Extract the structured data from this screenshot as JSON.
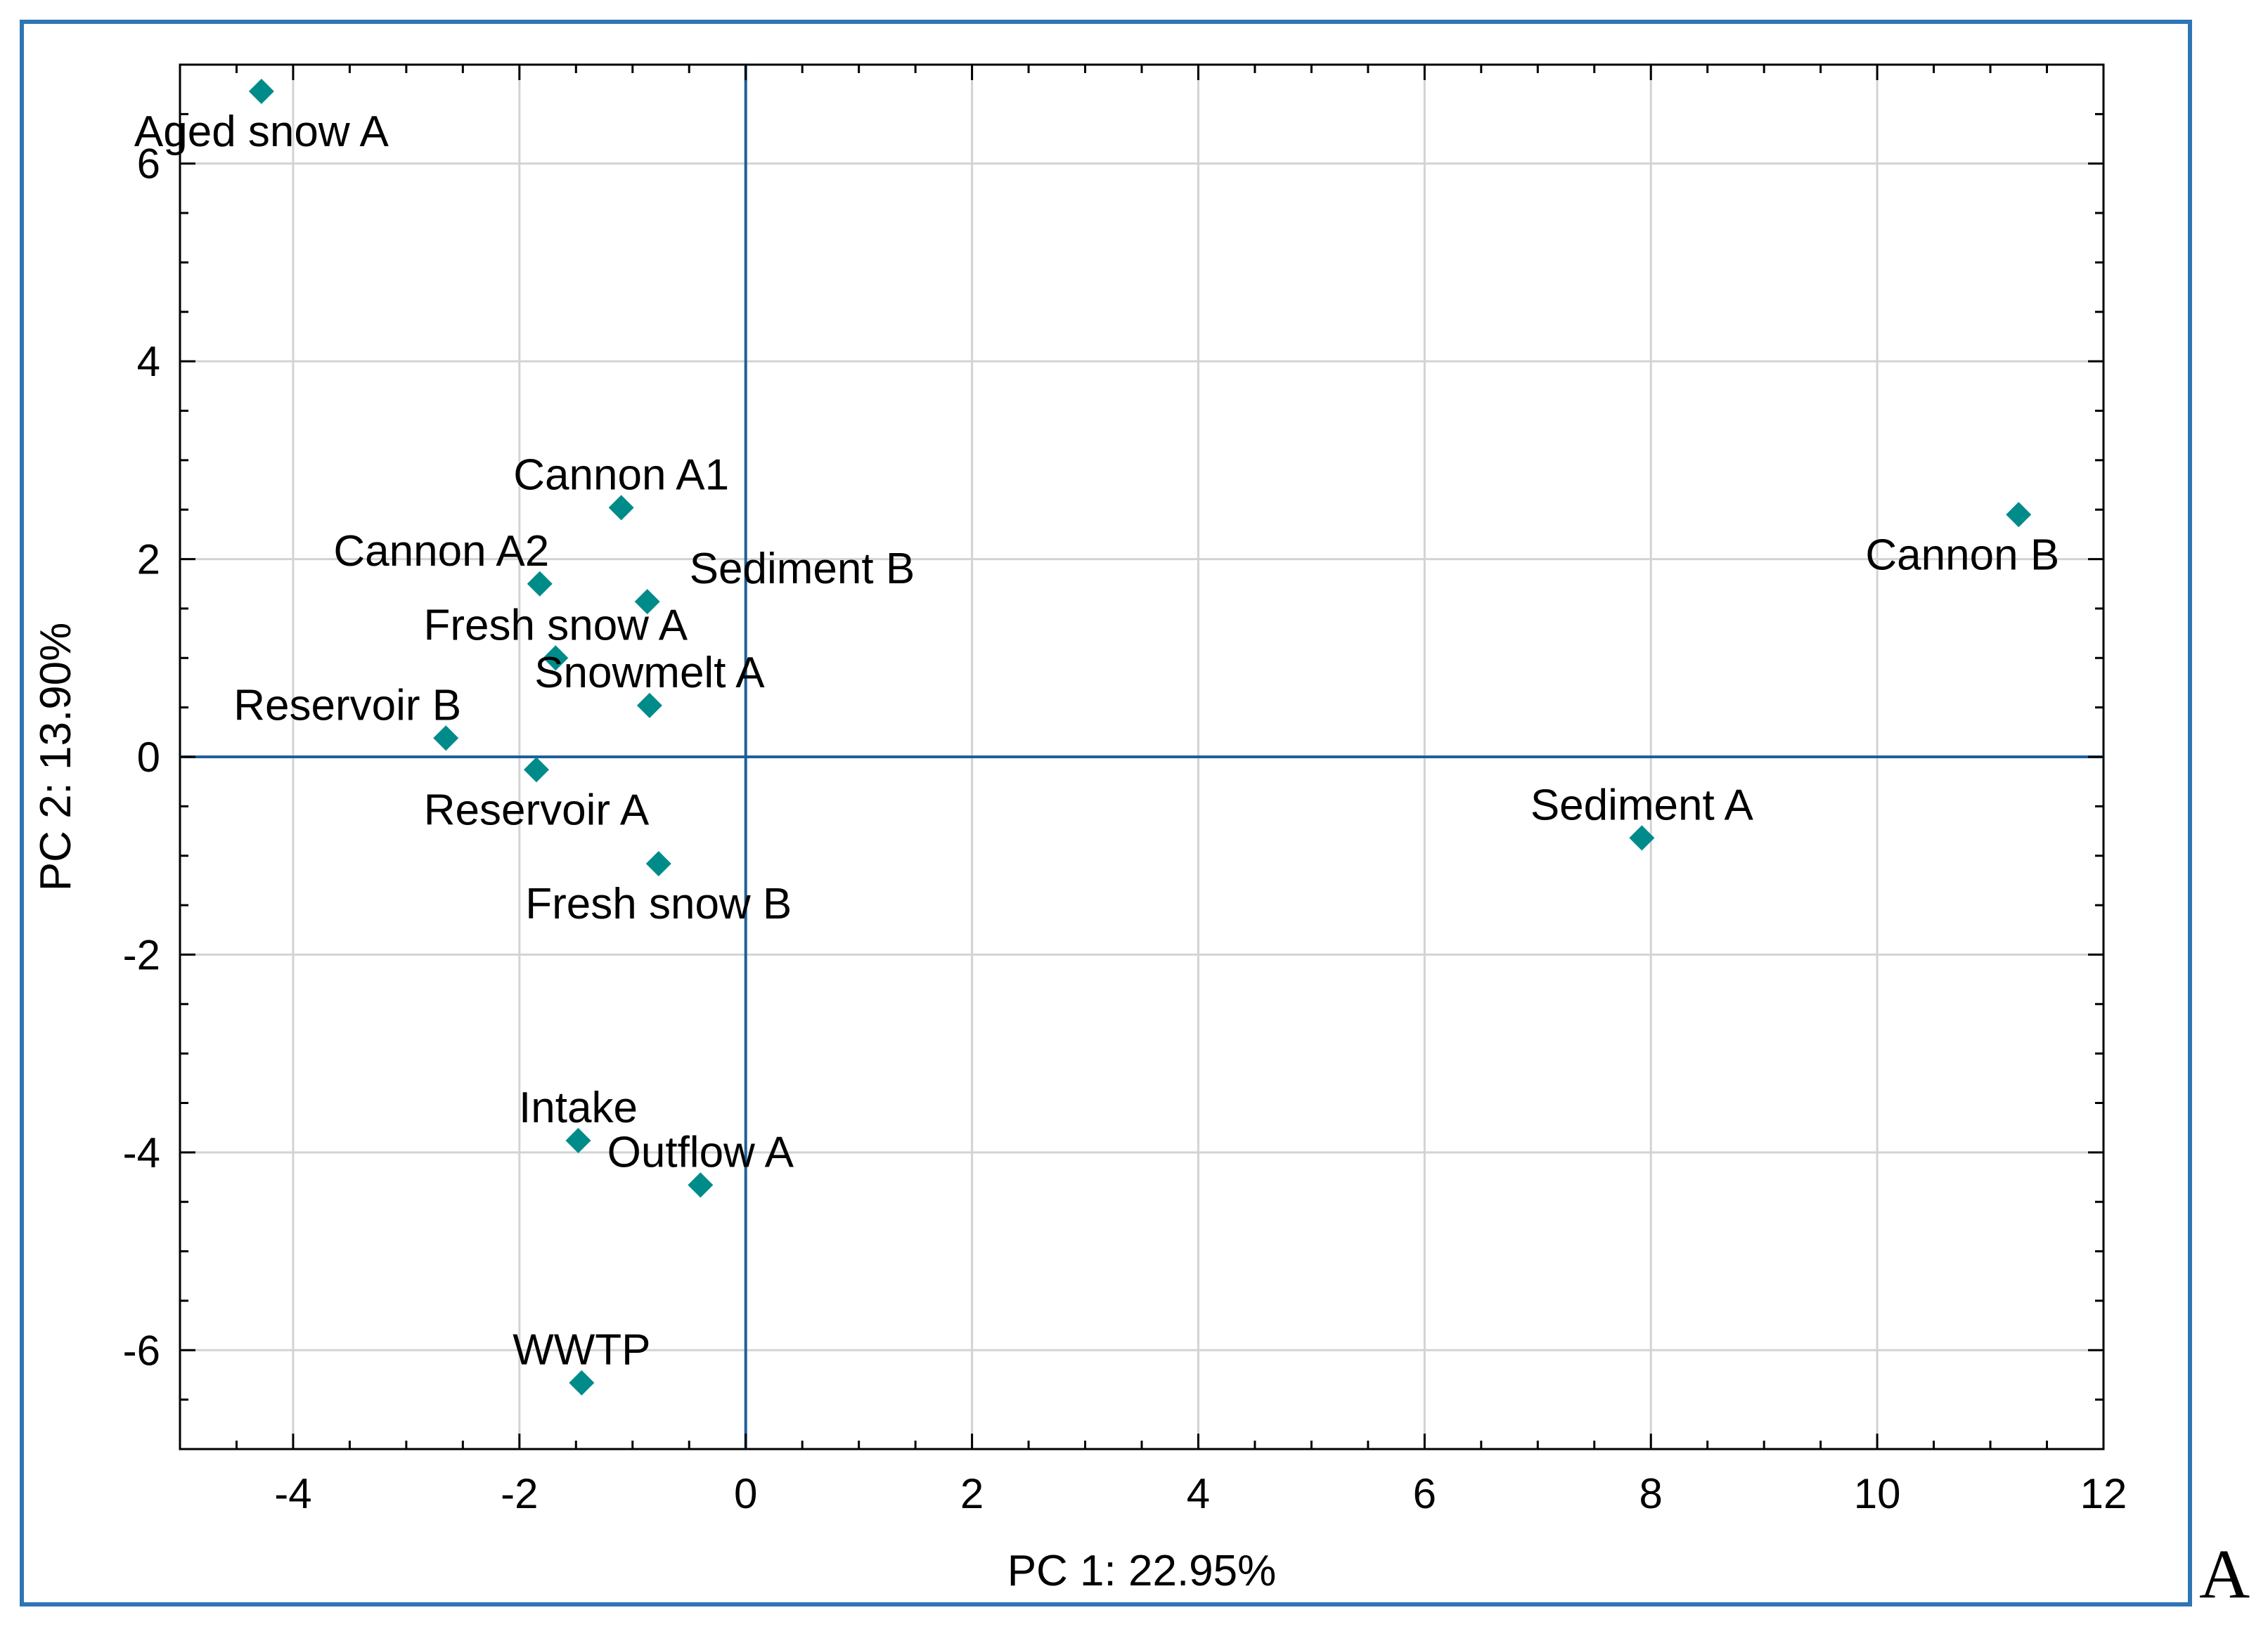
{
  "panel_letter": "A",
  "colors": {
    "marker": "#008B8B",
    "frame": "#2E75B6",
    "zero_lines": "#1F5F9A",
    "grid": "#D3D3D3"
  },
  "chart_data": {
    "type": "scatter",
    "title": "",
    "xlabel": "PC 1: 22.95%",
    "ylabel": "PC 2: 13.90%",
    "xlim": [
      -5,
      12
    ],
    "ylim": [
      -7,
      7
    ],
    "xticks": [
      -4,
      -2,
      0,
      2,
      4,
      6,
      8,
      10,
      12
    ],
    "yticks": [
      -6,
      -4,
      -2,
      0,
      2,
      4,
      6
    ],
    "grid": true,
    "marker": "diamond",
    "points": [
      {
        "label": "Aged snow A",
        "x": -4.28,
        "y": 6.73,
        "anchor": "below"
      },
      {
        "label": "Cannon A1",
        "x": -1.1,
        "y": 2.52,
        "anchor": "above"
      },
      {
        "label": "Cannon A2",
        "x": -1.82,
        "y": 1.75,
        "anchor": "above-left"
      },
      {
        "label": "Sediment B",
        "x": -0.87,
        "y": 1.57,
        "anchor": "above-right"
      },
      {
        "label": "Fresh snow A",
        "x": -1.68,
        "y": 1.0,
        "anchor": "above"
      },
      {
        "label": "Snowmelt A",
        "x": -0.85,
        "y": 0.52,
        "anchor": "above"
      },
      {
        "label": "Reservoir B",
        "x": -2.65,
        "y": 0.19,
        "anchor": "above-left"
      },
      {
        "label": "Reservoir A",
        "x": -1.85,
        "y": -0.13,
        "anchor": "below"
      },
      {
        "label": "Fresh snow B",
        "x": -0.77,
        "y": -1.08,
        "anchor": "below"
      },
      {
        "label": "Intake",
        "x": -1.48,
        "y": -3.88,
        "anchor": "above"
      },
      {
        "label": "Outflow A",
        "x": -0.4,
        "y": -4.33,
        "anchor": "above"
      },
      {
        "label": "WWTP",
        "x": -1.45,
        "y": -6.33,
        "anchor": "above"
      },
      {
        "label": "Sediment A",
        "x": 7.92,
        "y": -0.82,
        "anchor": "above"
      },
      {
        "label": "Cannon B",
        "x": 11.25,
        "y": 2.45,
        "anchor": "below-left"
      }
    ]
  }
}
